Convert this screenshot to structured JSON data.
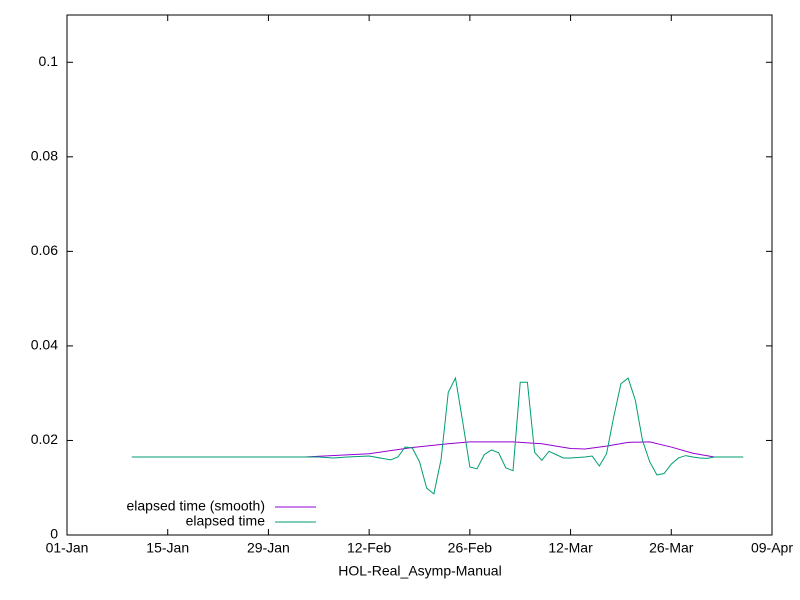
{
  "chart_data": {
    "type": "line",
    "xlabel": "HOL-Real_Asymp-Manual",
    "xlim": [
      "01-01",
      "04-09"
    ],
    "xticks": [
      {
        "value": "01-01",
        "label": "01-Jan"
      },
      {
        "value": "01-15",
        "label": "15-Jan"
      },
      {
        "value": "01-29",
        "label": "29-Jan"
      },
      {
        "value": "02-12",
        "label": "12-Feb"
      },
      {
        "value": "02-26",
        "label": "26-Feb"
      },
      {
        "value": "03-12",
        "label": "12-Mar"
      },
      {
        "value": "03-26",
        "label": "26-Mar"
      },
      {
        "value": "04-09",
        "label": "09-Apr"
      }
    ],
    "ylim": [
      0,
      0.11
    ],
    "yticks": [
      0,
      0.02,
      0.04,
      0.06,
      0.08,
      0.1
    ],
    "legend": "bottom-left",
    "series": [
      {
        "name": "elapsed time (smooth)",
        "color": "#9400d3",
        "x": [
          "02-03",
          "02-12",
          "02-18",
          "02-23",
          "02-26",
          "03-04",
          "03-08",
          "03-12",
          "03-14",
          "03-17",
          "03-20",
          "03-23",
          "03-26",
          "03-29",
          "04-01"
        ],
        "values": [
          0.0165,
          0.0172,
          0.0185,
          0.0193,
          0.0197,
          0.0197,
          0.0193,
          0.0183,
          0.0182,
          0.0188,
          0.0196,
          0.0197,
          0.0186,
          0.0173,
          0.0165
        ]
      },
      {
        "name": "elapsed time",
        "color": "#009e73",
        "x": [
          "01-10",
          "02-04",
          "02-05",
          "02-07",
          "02-09",
          "02-12",
          "02-15",
          "02-16",
          "02-17",
          "02-18",
          "02-19",
          "02-20",
          "02-21",
          "02-22",
          "02-23",
          "02-24",
          "02-25",
          "02-26",
          "02-27",
          "02-28",
          "03-01",
          "03-02",
          "03-03",
          "03-04",
          "03-05",
          "03-06",
          "03-07",
          "03-08",
          "03-09",
          "03-10",
          "03-11",
          "03-12",
          "03-14",
          "03-15",
          "03-16",
          "03-17",
          "03-18",
          "03-19",
          "03-20",
          "03-21",
          "03-22",
          "03-23",
          "03-24",
          "03-25",
          "03-26",
          "03-27",
          "03-28",
          "03-29",
          "03-30",
          "03-31",
          "04-01",
          "04-05"
        ],
        "values": [
          0.0165,
          0.0165,
          0.0165,
          0.0163,
          0.0165,
          0.0167,
          0.0159,
          0.0165,
          0.0186,
          0.0184,
          0.0155,
          0.0099,
          0.0087,
          0.016,
          0.0302,
          0.0332,
          0.024,
          0.0144,
          0.014,
          0.017,
          0.018,
          0.0174,
          0.0142,
          0.0136,
          0.0323,
          0.0323,
          0.0175,
          0.0158,
          0.0177,
          0.017,
          0.0163,
          0.0163,
          0.0165,
          0.0167,
          0.0146,
          0.0172,
          0.025,
          0.032,
          0.0332,
          0.0285,
          0.02,
          0.0155,
          0.0127,
          0.013,
          0.015,
          0.0163,
          0.0168,
          0.0165,
          0.0163,
          0.0162,
          0.0165,
          0.0165
        ]
      }
    ]
  }
}
